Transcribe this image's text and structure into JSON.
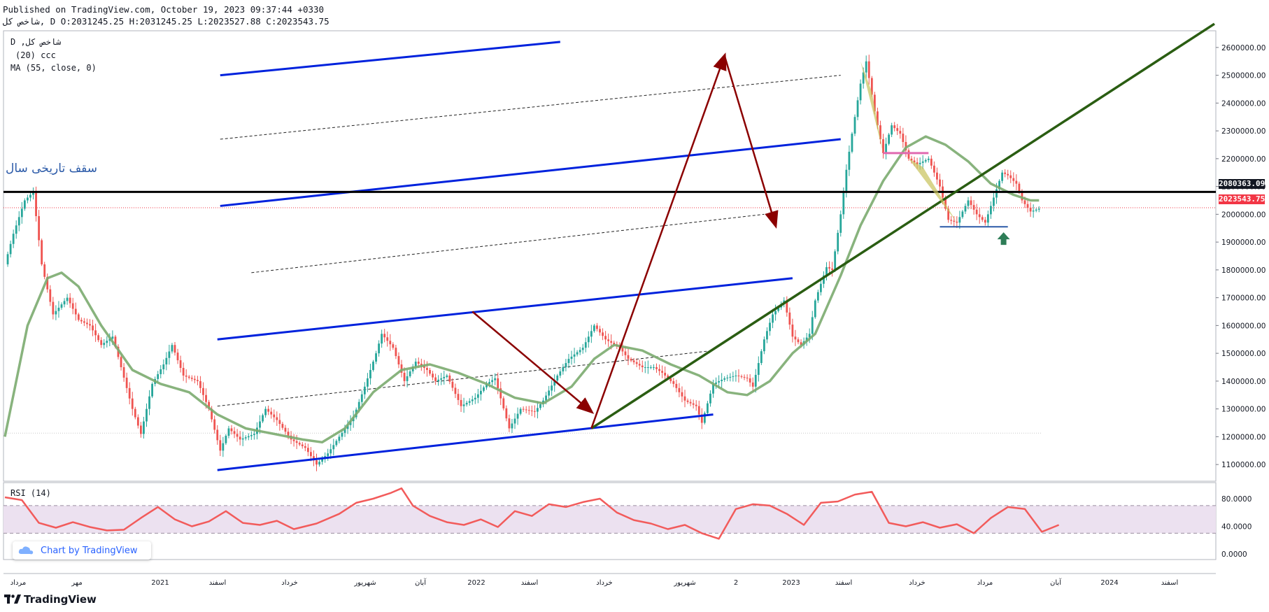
{
  "header": {
    "published": "Published on TradingView.com, October 19, 2023 09:37:44 +0330",
    "ohlc": "شاخص کل, D O:2031245.25 H:2031245.25 L:2023527.88 C:2023543.75"
  },
  "legend": {
    "symbol": "D ,شاخص کل",
    "indicator1": "(20) ccc",
    "indicator2": "MA (55, close, 0)",
    "rsi": "RSI (14)"
  },
  "annotation": "سقف تاریخی سال",
  "byline": "Chart by TradingView",
  "brand": "TradingView",
  "colors": {
    "up": "#26a69a",
    "down": "#ef5350",
    "ma": "#7bab6f",
    "channel": "#0022dd",
    "trend": "#2a5d12",
    "arrow": "#8b0000",
    "rsi": "#f25b5b",
    "rsi_band": "#ece1f0",
    "last": "#f23645"
  },
  "chart_data": [
    {
      "type": "candlestick",
      "y_axis_ticks": [
        "2600000.00",
        "2500000.00",
        "2400000.00",
        "2300000.00",
        "2200000.00",
        "2100000.00",
        "2000000.00",
        "1900000.00",
        "1800000.00",
        "1700000.00",
        "1600000.00",
        "1500000.00",
        "1400000.00",
        "1300000.00",
        "1200000.00",
        "1100000.00"
      ],
      "x_axis_ticks": [
        "مرداد",
        "مهر",
        "2021",
        "اسفند",
        "خرداد",
        "شهریور",
        "آبان",
        "2022",
        "اسفند",
        "خرداد",
        "شهریور",
        "2",
        "2023",
        "اسفند",
        "خرداد",
        "مرداد",
        "آبان",
        "2024",
        "اسفند"
      ],
      "ylim": [
        1040000,
        2660000
      ],
      "price_labels": {
        "resistance": "2080363.09",
        "last": "2023543.75"
      },
      "resistance": 2080363.09,
      "last_close": 2023543.75,
      "close_path": [
        [
          0,
          1820000
        ],
        [
          3,
          1930000
        ],
        [
          7,
          2050000
        ],
        [
          10,
          2080000
        ],
        [
          13,
          1820000
        ],
        [
          17,
          1640000
        ],
        [
          22,
          1700000
        ],
        [
          26,
          1620000
        ],
        [
          30,
          1600000
        ],
        [
          34,
          1530000
        ],
        [
          38,
          1560000
        ],
        [
          41,
          1450000
        ],
        [
          45,
          1300000
        ],
        [
          48,
          1210000
        ],
        [
          52,
          1390000
        ],
        [
          56,
          1460000
        ],
        [
          59,
          1530000
        ],
        [
          63,
          1420000
        ],
        [
          68,
          1400000
        ],
        [
          72,
          1300000
        ],
        [
          76,
          1150000
        ],
        [
          79,
          1230000
        ],
        [
          83,
          1190000
        ],
        [
          88,
          1210000
        ],
        [
          92,
          1300000
        ],
        [
          96,
          1260000
        ],
        [
          101,
          1190000
        ],
        [
          106,
          1160000
        ],
        [
          110,
          1100000
        ],
        [
          114,
          1140000
        ],
        [
          118,
          1200000
        ],
        [
          123,
          1270000
        ],
        [
          127,
          1380000
        ],
        [
          131,
          1500000
        ],
        [
          133,
          1570000
        ],
        [
          137,
          1520000
        ],
        [
          141,
          1400000
        ],
        [
          145,
          1470000
        ],
        [
          149,
          1440000
        ],
        [
          152,
          1400000
        ],
        [
          156,
          1420000
        ],
        [
          161,
          1310000
        ],
        [
          166,
          1340000
        ],
        [
          170,
          1390000
        ],
        [
          173,
          1410000
        ],
        [
          178,
          1230000
        ],
        [
          182,
          1300000
        ],
        [
          187,
          1290000
        ],
        [
          190,
          1330000
        ],
        [
          195,
          1420000
        ],
        [
          199,
          1480000
        ],
        [
          204,
          1520000
        ],
        [
          208,
          1600000
        ],
        [
          212,
          1550000
        ],
        [
          217,
          1520000
        ],
        [
          220,
          1480000
        ],
        [
          225,
          1450000
        ],
        [
          229,
          1450000
        ],
        [
          232,
          1430000
        ],
        [
          236,
          1390000
        ],
        [
          240,
          1330000
        ],
        [
          244,
          1310000
        ],
        [
          246,
          1250000
        ],
        [
          250,
          1390000
        ],
        [
          254,
          1410000
        ],
        [
          258,
          1420000
        ],
        [
          262,
          1410000
        ],
        [
          264,
          1380000
        ],
        [
          268,
          1550000
        ],
        [
          271,
          1640000
        ],
        [
          275,
          1690000
        ],
        [
          278,
          1560000
        ],
        [
          281,
          1530000
        ],
        [
          284,
          1570000
        ],
        [
          286,
          1690000
        ],
        [
          290,
          1810000
        ],
        [
          292,
          1800000
        ],
        [
          295,
          2000000
        ],
        [
          297,
          2160000
        ],
        [
          299,
          2290000
        ],
        [
          302,
          2470000
        ],
        [
          304,
          2550000
        ],
        [
          307,
          2370000
        ],
        [
          310,
          2220000
        ],
        [
          313,
          2320000
        ],
        [
          316,
          2290000
        ],
        [
          319,
          2200000
        ],
        [
          322,
          2180000
        ],
        [
          326,
          2200000
        ],
        [
          330,
          2100000
        ],
        [
          333,
          1980000
        ],
        [
          336,
          1970000
        ],
        [
          340,
          2050000
        ],
        [
          343,
          2000000
        ],
        [
          346,
          1970000
        ],
        [
          349,
          2060000
        ],
        [
          352,
          2150000
        ],
        [
          354,
          2140000
        ],
        [
          357,
          2110000
        ],
        [
          359,
          2050000
        ],
        [
          362,
          2010000
        ],
        [
          365,
          2020000
        ]
      ],
      "ma_path": [
        [
          0,
          1200000
        ],
        [
          8,
          1600000
        ],
        [
          15,
          1770000
        ],
        [
          20,
          1790000
        ],
        [
          26,
          1740000
        ],
        [
          34,
          1600000
        ],
        [
          45,
          1440000
        ],
        [
          55,
          1390000
        ],
        [
          65,
          1360000
        ],
        [
          75,
          1280000
        ],
        [
          85,
          1230000
        ],
        [
          95,
          1210000
        ],
        [
          105,
          1190000
        ],
        [
          112,
          1180000
        ],
        [
          120,
          1230000
        ],
        [
          130,
          1360000
        ],
        [
          140,
          1440000
        ],
        [
          150,
          1460000
        ],
        [
          160,
          1430000
        ],
        [
          170,
          1390000
        ],
        [
          180,
          1340000
        ],
        [
          190,
          1320000
        ],
        [
          200,
          1380000
        ],
        [
          208,
          1480000
        ],
        [
          215,
          1530000
        ],
        [
          225,
          1510000
        ],
        [
          235,
          1460000
        ],
        [
          245,
          1420000
        ],
        [
          255,
          1360000
        ],
        [
          262,
          1350000
        ],
        [
          270,
          1400000
        ],
        [
          278,
          1500000
        ],
        [
          286,
          1570000
        ],
        [
          295,
          1780000
        ],
        [
          302,
          1960000
        ],
        [
          310,
          2120000
        ],
        [
          318,
          2240000
        ],
        [
          325,
          2280000
        ],
        [
          332,
          2250000
        ],
        [
          340,
          2190000
        ],
        [
          348,
          2110000
        ],
        [
          356,
          2070000
        ],
        [
          362,
          2050000
        ],
        [
          365,
          2050000
        ]
      ],
      "channels": [
        {
          "from": [
            75,
            1080000
          ],
          "to": [
            250,
            1280000
          ]
        },
        {
          "from": [
            75,
            1550000
          ],
          "to": [
            278,
            1770000
          ]
        },
        {
          "from": [
            76,
            2030000
          ],
          "to": [
            295,
            2270000
          ]
        },
        {
          "from": [
            76,
            2500000
          ],
          "to": [
            196,
            2620000
          ]
        }
      ],
      "midlines": [
        {
          "from": [
            75,
            1310000
          ],
          "to": [
            250,
            1510000
          ]
        },
        {
          "from": [
            87,
            1790000
          ],
          "to": [
            268,
            2000000
          ]
        },
        {
          "from": [
            76,
            2270000
          ],
          "to": [
            295,
            2500000
          ]
        }
      ],
      "trendline": {
        "from": [
          207,
          1230000
        ],
        "to": [
          405,
          2540000
        ]
      },
      "arrows": [
        {
          "from": [
            165,
            1650000
          ],
          "to": [
            207,
            1290000
          ]
        },
        {
          "from": [
            207,
            1230000
          ],
          "to": [
            254,
            2570000
          ]
        },
        {
          "from": [
            254,
            2570000
          ],
          "to": [
            272,
            1960000
          ]
        }
      ],
      "rsi": {
        "name": "RSI (14)",
        "ticks": [
          "80.0000",
          "40.0000",
          "0.0000"
        ],
        "band": [
          70,
          30
        ],
        "path": [
          [
            0,
            82
          ],
          [
            6,
            78
          ],
          [
            12,
            45
          ],
          [
            18,
            38
          ],
          [
            24,
            46
          ],
          [
            30,
            39
          ],
          [
            36,
            34
          ],
          [
            42,
            35
          ],
          [
            48,
            52
          ],
          [
            54,
            68
          ],
          [
            60,
            50
          ],
          [
            66,
            40
          ],
          [
            72,
            47
          ],
          [
            78,
            62
          ],
          [
            84,
            45
          ],
          [
            90,
            42
          ],
          [
            96,
            48
          ],
          [
            102,
            36
          ],
          [
            110,
            44
          ],
          [
            118,
            58
          ],
          [
            124,
            74
          ],
          [
            130,
            80
          ],
          [
            136,
            88
          ],
          [
            140,
            95
          ],
          [
            144,
            70
          ],
          [
            150,
            55
          ],
          [
            156,
            46
          ],
          [
            162,
            42
          ],
          [
            168,
            50
          ],
          [
            174,
            39
          ],
          [
            180,
            62
          ],
          [
            186,
            55
          ],
          [
            192,
            72
          ],
          [
            198,
            68
          ],
          [
            204,
            75
          ],
          [
            210,
            80
          ],
          [
            216,
            60
          ],
          [
            222,
            49
          ],
          [
            228,
            44
          ],
          [
            234,
            36
          ],
          [
            240,
            42
          ],
          [
            246,
            30
          ],
          [
            252,
            22
          ],
          [
            258,
            65
          ],
          [
            264,
            72
          ],
          [
            270,
            70
          ],
          [
            276,
            58
          ],
          [
            282,
            42
          ],
          [
            288,
            74
          ],
          [
            294,
            76
          ],
          [
            300,
            86
          ],
          [
            306,
            90
          ],
          [
            312,
            45
          ],
          [
            318,
            40
          ],
          [
            324,
            46
          ],
          [
            330,
            38
          ],
          [
            336,
            43
          ],
          [
            342,
            30
          ],
          [
            348,
            52
          ],
          [
            354,
            68
          ],
          [
            360,
            65
          ],
          [
            366,
            32
          ],
          [
            372,
            42
          ]
        ]
      }
    }
  ]
}
